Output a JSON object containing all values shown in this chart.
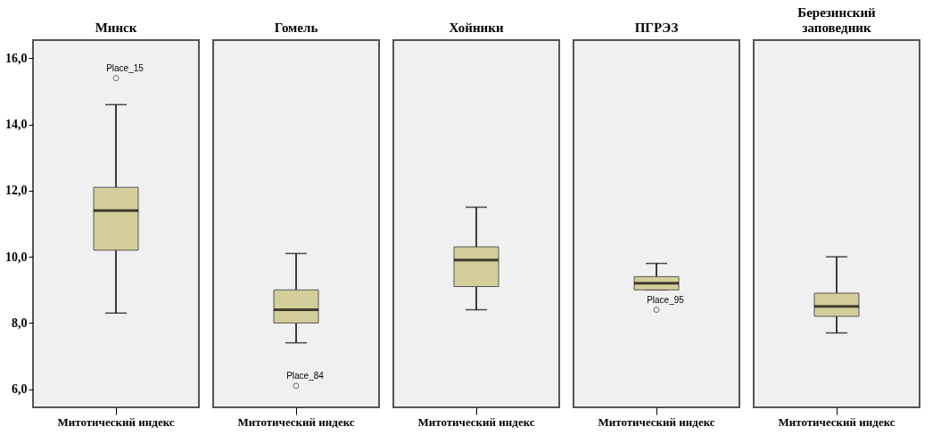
{
  "chart_data": [
    {
      "type": "box",
      "title": "Минск",
      "categories": [
        "Митотический индекс"
      ],
      "ylim": [
        5.45,
        16.55
      ],
      "yticks": [
        {
          "value": 6,
          "label": "6,0"
        },
        {
          "value": 8,
          "label": "8,0"
        },
        {
          "value": 10,
          "label": "10,0"
        },
        {
          "value": 12,
          "label": "12,0"
        },
        {
          "value": 14,
          "label": "14,0"
        },
        {
          "value": 16,
          "label": "16,0"
        }
      ],
      "grid": false,
      "series": [
        {
          "color": "#d3ce9a",
          "boxes": [
            {
              "low": 8.3,
              "q1": 10.2,
              "median": 11.4,
              "q3": 12.1,
              "high": 14.6,
              "outliers": [
                15.4
              ]
            }
          ]
        }
      ],
      "annotations": [
        "Place_15"
      ]
    },
    {
      "type": "box",
      "title": "Гомель",
      "categories": [
        "Митотический индекс"
      ],
      "ylim": [
        5.45,
        16.55
      ],
      "tick_labels": "x",
      "grid": false,
      "series": [
        {
          "color": "#d3ce9a",
          "boxes": [
            {
              "low": 7.4,
              "q1": 8.0,
              "median": 8.4,
              "q3": 9.0,
              "high": 10.1,
              "outliers": [
                6.1
              ]
            }
          ]
        }
      ],
      "annotations": [
        "Place_84"
      ]
    },
    {
      "type": "box",
      "title": "Хойники",
      "categories": [
        "Митотический индекс"
      ],
      "ylim": [
        5.45,
        16.55
      ],
      "tick_labels": "x",
      "grid": false,
      "series": [
        {
          "color": "#d3ce9a",
          "boxes": [
            {
              "low": 8.4,
              "q1": 9.1,
              "median": 9.9,
              "q3": 10.3,
              "high": 11.5
            }
          ]
        }
      ]
    },
    {
      "type": "box",
      "title": "ПГРЭЗ",
      "categories": [
        "Митотический индекс"
      ],
      "ylim": [
        5.45,
        16.55
      ],
      "tick_labels": "x",
      "grid": false,
      "series": [
        {
          "color": "#d3ce9a",
          "boxes": [
            {
              "low": 9.0,
              "q1": 9.0,
              "median": 9.2,
              "q3": 9.4,
              "high": 9.8,
              "outliers": [
                8.4
              ]
            }
          ]
        }
      ],
      "annotations": [
        "Place_95"
      ]
    },
    {
      "type": "box",
      "title": "Березинский заповедник",
      "categories": [
        "Митотический индекс"
      ],
      "ylim": [
        5.45,
        16.55
      ],
      "tick_labels": "x",
      "grid": false,
      "series": [
        {
          "color": "#d3ce9a",
          "boxes": [
            {
              "low": 7.7,
              "q1": 8.2,
              "median": 8.5,
              "q3": 8.9,
              "high": 10.0
            }
          ]
        }
      ]
    }
  ]
}
